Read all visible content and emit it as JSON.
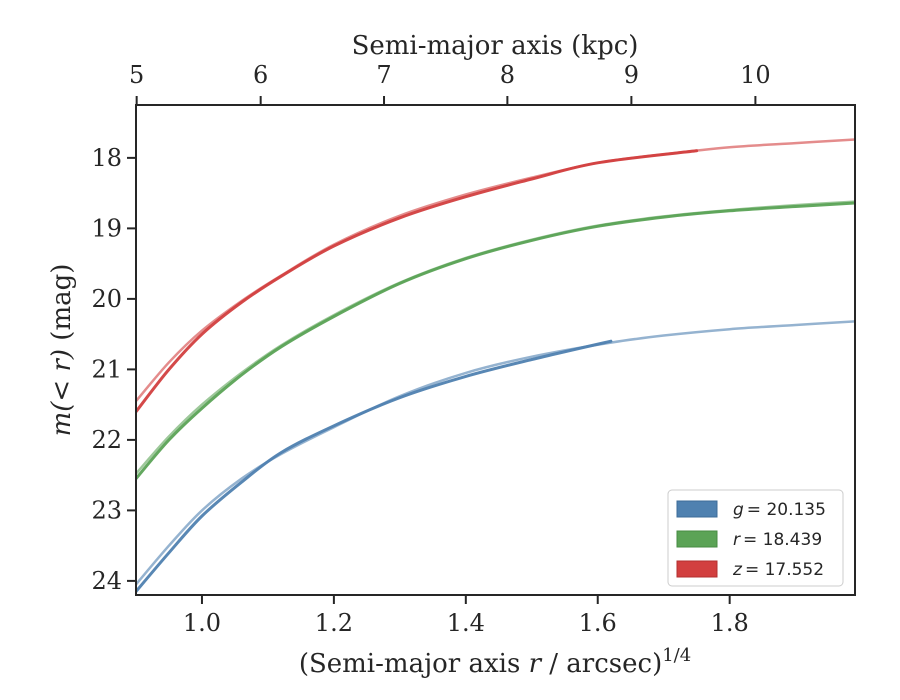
{
  "chart_data": {
    "type": "line",
    "xlabel": "(Semi-major axis r / arcsec)^1/4",
    "xlabel_parts": {
      "pre": "(Semi-major axis ",
      "var": "r",
      "post": " / arcsec)",
      "sup": "1/4"
    },
    "ylabel": "m(<r) (mag)",
    "ylabel_parts": {
      "math": "m(< r)",
      "unit": " (mag)"
    },
    "top_xlabel": "Semi-major axis (kpc)",
    "xlim": [
      0.9,
      1.99
    ],
    "ylim": [
      24.2,
      17.25
    ],
    "y_inverted": true,
    "xticks": [
      1.0,
      1.2,
      1.4,
      1.6,
      1.8
    ],
    "xtick_labels": [
      "1.0",
      "1.2",
      "1.4",
      "1.6",
      "1.8"
    ],
    "yticks": [
      18,
      19,
      20,
      21,
      22,
      23,
      24
    ],
    "ytick_labels": [
      "18",
      "19",
      "20",
      "21",
      "22",
      "23",
      "24"
    ],
    "top_ticks": [
      5,
      6,
      7,
      8,
      9,
      10
    ],
    "top_tick_labels": [
      "5",
      "6",
      "7",
      "8",
      "9",
      "10"
    ],
    "top_tick_positions": [
      0.901,
      1.089,
      1.276,
      1.463,
      1.651,
      1.839
    ],
    "grid": false,
    "legend_position": "bottom-right",
    "series": [
      {
        "name": "g = 20.135",
        "legend_label": {
          "var": "g",
          "value": "= 20.135"
        },
        "color": "#4f81b0",
        "observed": [
          [
            0.9,
            24.15
          ],
          [
            0.95,
            23.6
          ],
          [
            1.0,
            23.08
          ],
          [
            1.06,
            22.6
          ],
          [
            1.12,
            22.18
          ],
          [
            1.2,
            21.8
          ],
          [
            1.3,
            21.4
          ],
          [
            1.4,
            21.1
          ],
          [
            1.5,
            20.86
          ],
          [
            1.62,
            20.6
          ]
        ],
        "model": [
          [
            0.9,
            24.05
          ],
          [
            0.95,
            23.5
          ],
          [
            1.0,
            23.0
          ],
          [
            1.06,
            22.55
          ],
          [
            1.12,
            22.2
          ],
          [
            1.2,
            21.82
          ],
          [
            1.3,
            21.38
          ],
          [
            1.4,
            21.05
          ],
          [
            1.5,
            20.82
          ],
          [
            1.62,
            20.62
          ],
          [
            1.7,
            20.52
          ],
          [
            1.8,
            20.43
          ],
          [
            1.9,
            20.37
          ],
          [
            1.99,
            20.32
          ]
        ]
      },
      {
        "name": "r = 18.439",
        "legend_label": {
          "var": "r",
          "value": "= 18.439"
        },
        "color": "#5ba356",
        "observed": [
          [
            0.9,
            22.55
          ],
          [
            0.95,
            22.0
          ],
          [
            1.0,
            21.55
          ],
          [
            1.06,
            21.08
          ],
          [
            1.12,
            20.68
          ],
          [
            1.2,
            20.25
          ],
          [
            1.3,
            19.78
          ],
          [
            1.4,
            19.43
          ],
          [
            1.5,
            19.17
          ],
          [
            1.6,
            18.97
          ],
          [
            1.7,
            18.84
          ],
          [
            1.8,
            18.75
          ],
          [
            1.9,
            18.69
          ],
          [
            1.99,
            18.64
          ]
        ],
        "model": [
          [
            0.9,
            22.48
          ],
          [
            0.95,
            21.95
          ],
          [
            1.0,
            21.5
          ],
          [
            1.06,
            21.05
          ],
          [
            1.12,
            20.66
          ],
          [
            1.2,
            20.23
          ],
          [
            1.3,
            19.77
          ],
          [
            1.4,
            19.42
          ],
          [
            1.5,
            19.16
          ],
          [
            1.6,
            18.96
          ],
          [
            1.7,
            18.83
          ],
          [
            1.8,
            18.74
          ],
          [
            1.9,
            18.67
          ],
          [
            1.99,
            18.62
          ]
        ]
      },
      {
        "name": "z = 17.552",
        "legend_label": {
          "var": "z",
          "value": "= 17.552"
        },
        "color": "#d23f3f",
        "observed": [
          [
            0.9,
            21.6
          ],
          [
            0.95,
            21.0
          ],
          [
            1.0,
            20.5
          ],
          [
            1.06,
            20.05
          ],
          [
            1.12,
            19.68
          ],
          [
            1.2,
            19.25
          ],
          [
            1.3,
            18.85
          ],
          [
            1.4,
            18.55
          ],
          [
            1.5,
            18.3
          ],
          [
            1.6,
            18.07
          ],
          [
            1.75,
            17.9
          ]
        ],
        "model": [
          [
            0.9,
            21.45
          ],
          [
            0.95,
            20.9
          ],
          [
            1.0,
            20.45
          ],
          [
            1.06,
            20.03
          ],
          [
            1.12,
            19.67
          ],
          [
            1.2,
            19.23
          ],
          [
            1.3,
            18.82
          ],
          [
            1.4,
            18.52
          ],
          [
            1.5,
            18.28
          ],
          [
            1.6,
            18.07
          ],
          [
            1.7,
            17.95
          ],
          [
            1.8,
            17.85
          ],
          [
            1.9,
            17.79
          ],
          [
            1.99,
            17.74
          ]
        ]
      }
    ]
  }
}
